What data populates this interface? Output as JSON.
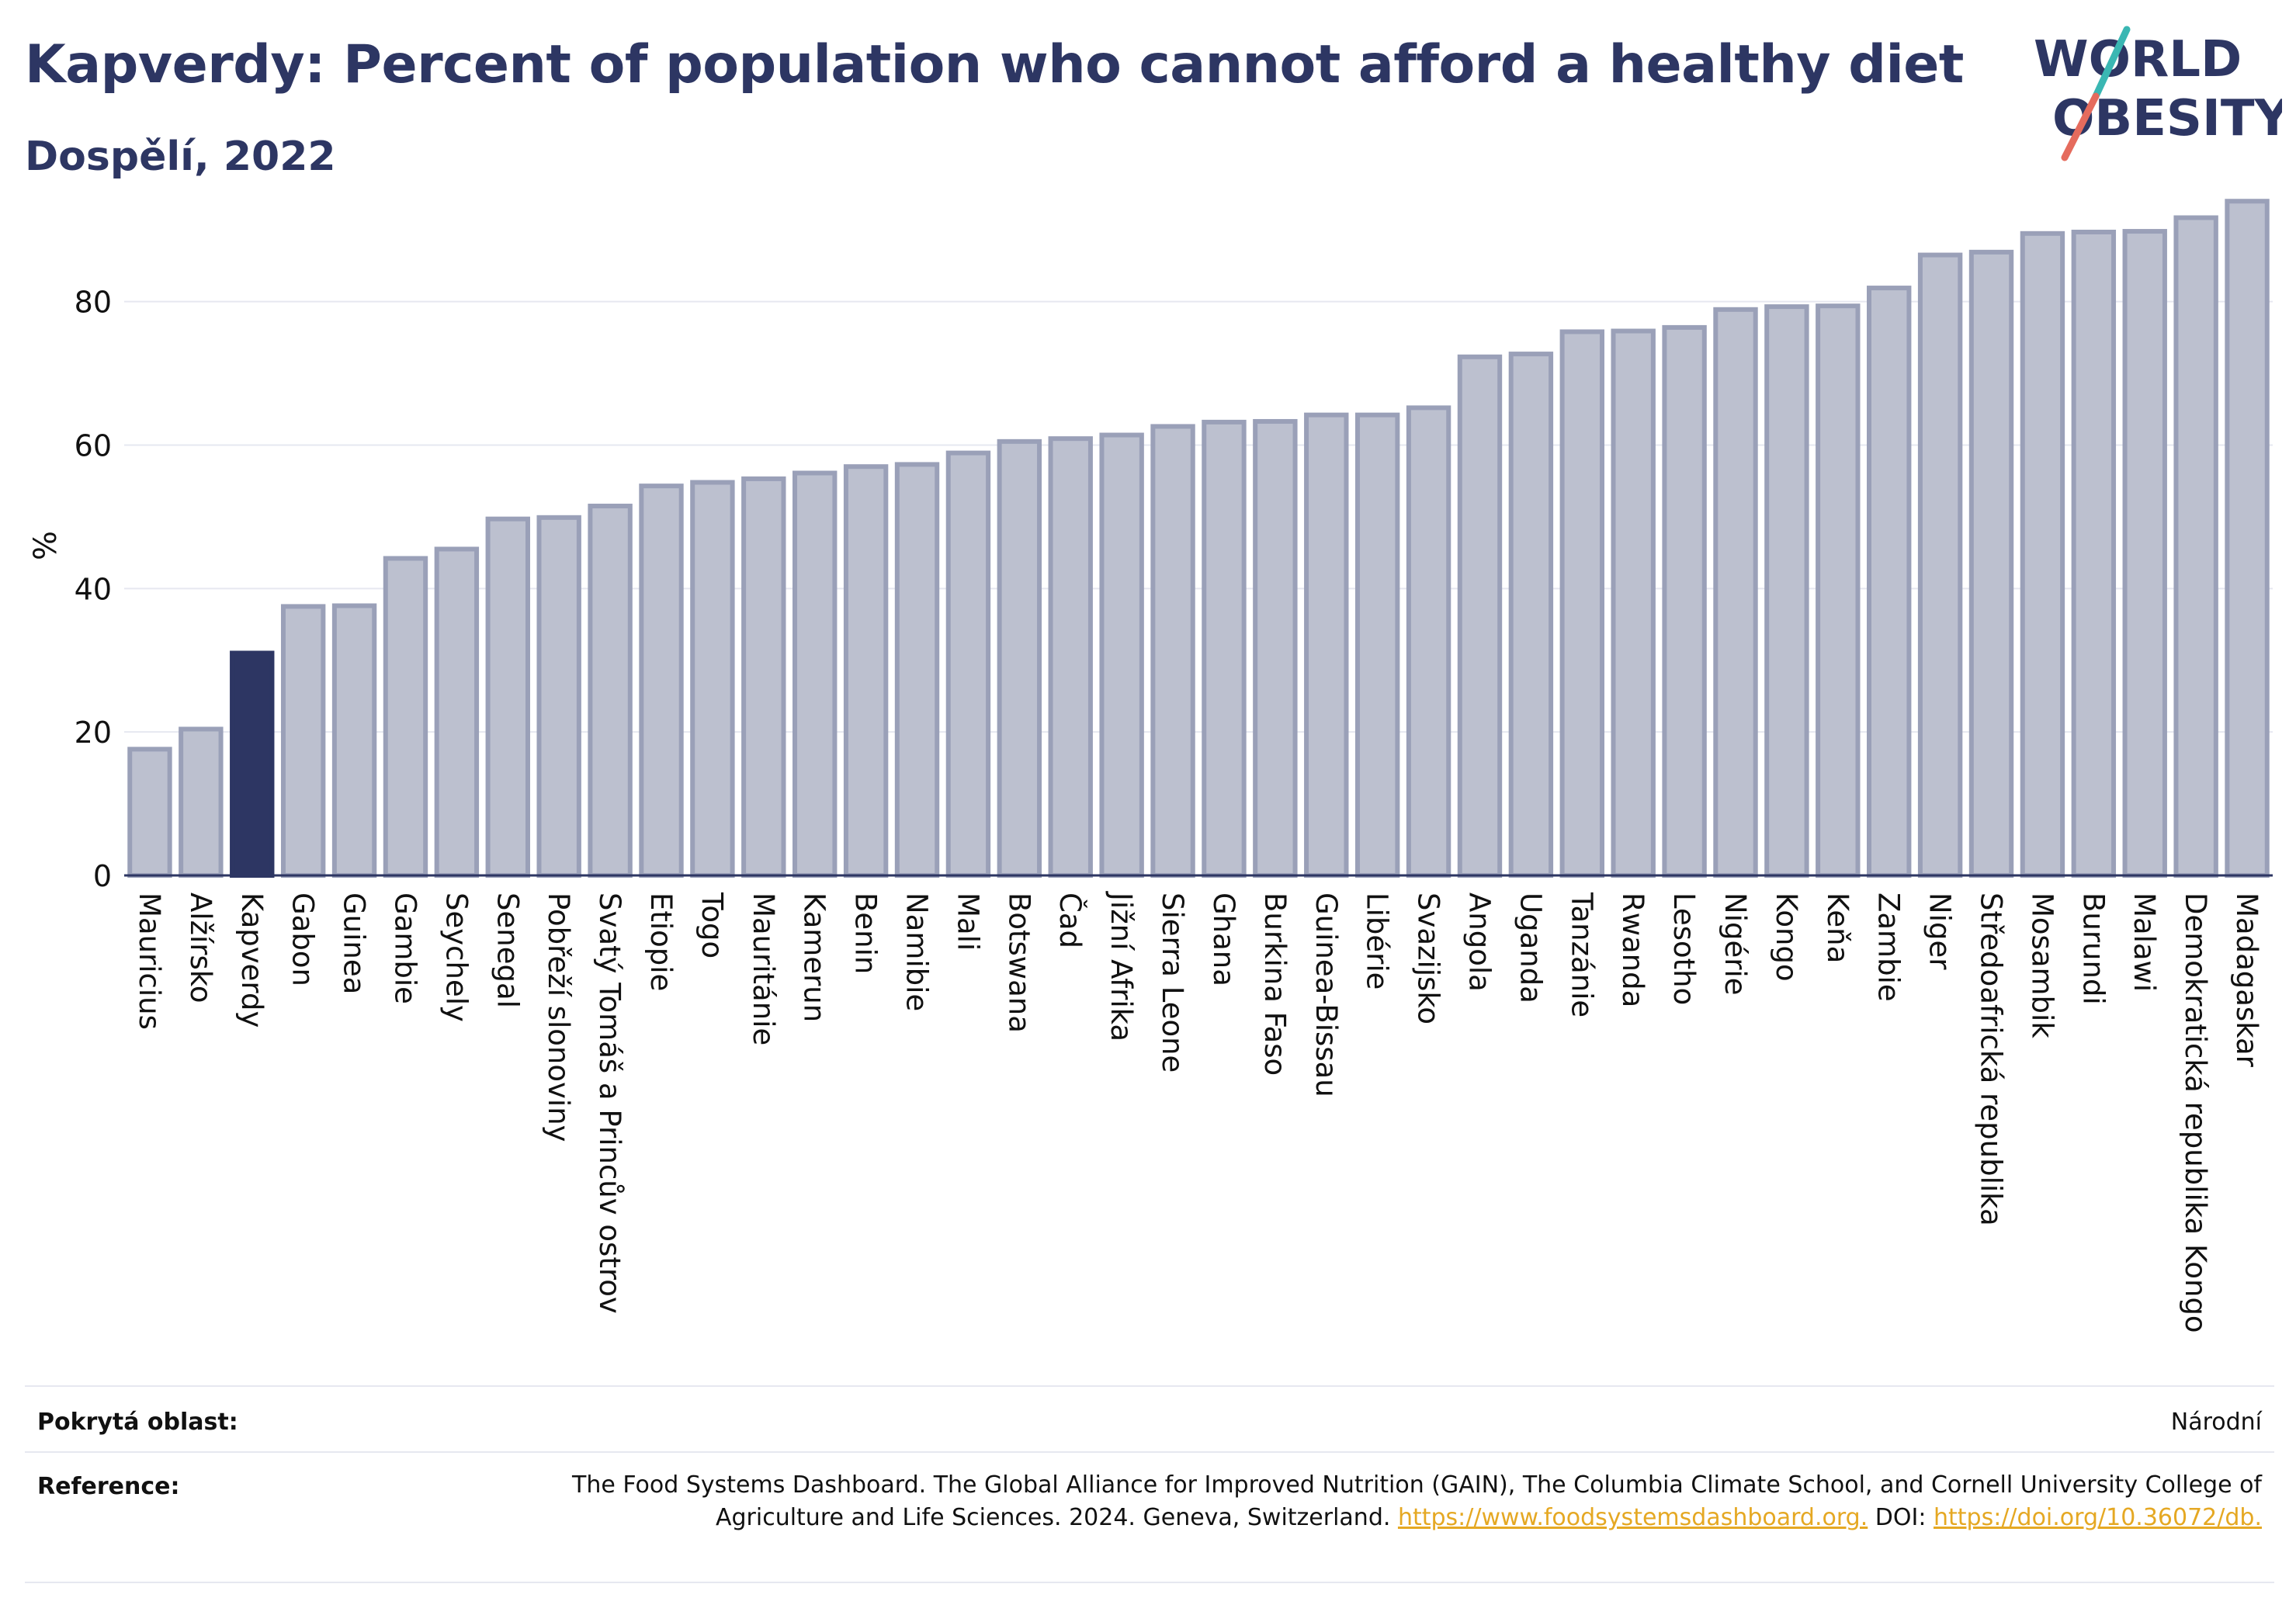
{
  "header": {
    "title": "Kapverdy: Percent of population who cannot afford a healthy diet",
    "subtitle": "Dospělí, 2022"
  },
  "logo": {
    "line1": "WORLD",
    "line2": "OBESITY",
    "text_color": "#2d3663",
    "slash_colors": [
      "#3ab7b3",
      "#e56b5d"
    ]
  },
  "colors": {
    "bar_fill": "#bcc0cf",
    "bar_stroke": "#9aa0b8",
    "highlight": "#2d3663",
    "gridline": "#e6e8f0",
    "axis": "#2d3663"
  },
  "chart_data": {
    "type": "bar",
    "ylabel": "%",
    "ylim": [
      0,
      95
    ],
    "yticks": [
      0,
      20,
      40,
      60,
      80
    ],
    "grid": true,
    "highlight_category": "Kapverdy",
    "categories": [
      "Mauricius",
      "Alžírsko",
      "Kapverdy",
      "Gabon",
      "Guinea",
      "Gambie",
      "Seychely",
      "Senegal",
      "Pobřeží slonoviny",
      "Svatý Tomáš a Princův ostrov",
      "Etiopie",
      "Togo",
      "Mauritánie",
      "Kamerun",
      "Benin",
      "Namibie",
      "Mali",
      "Botswana",
      "Čad",
      "Jižní Afrika",
      "Sierra Leone",
      "Ghana",
      "Burkina Faso",
      "Guinea-Bissau",
      "Libérie",
      "Svazijsko",
      "Angola",
      "Uganda",
      "Tanzánie",
      "Rwanda",
      "Lesotho",
      "Nigérie",
      "Kongo",
      "Keňa",
      "Zambie",
      "Niger",
      "Středoafrická republika",
      "Mosambik",
      "Burundi",
      "Malawi",
      "Demokratická republika Kongo",
      "Madagaskar"
    ],
    "values": [
      17.6,
      20.4,
      31.0,
      37.5,
      37.6,
      44.2,
      45.5,
      49.7,
      49.9,
      51.5,
      54.3,
      54.8,
      55.3,
      56.1,
      57.0,
      57.3,
      58.9,
      60.5,
      60.9,
      61.4,
      62.6,
      63.2,
      63.3,
      64.2,
      64.2,
      65.2,
      72.3,
      72.7,
      75.8,
      75.9,
      76.4,
      78.9,
      79.3,
      79.4,
      81.9,
      86.5,
      86.9,
      89.5,
      89.7,
      89.8,
      91.7,
      94.0
    ]
  },
  "footer": {
    "coverage_label": "Pokrytá oblast:",
    "coverage_value": "Národní",
    "reference_label": "Reference:",
    "reference_text": "The Food Systems Dashboard. The Global Alliance for Improved Nutrition (GAIN), The Columbia Climate School, and Cornell University College of Agriculture and Life Sciences. 2024. Geneva, Switzerland. ",
    "reference_link1": "https://www.foodsystemsdashboard.org.",
    "reference_doi_label": " DOI: ",
    "reference_link2": "https://doi.org/10.36072/db."
  }
}
